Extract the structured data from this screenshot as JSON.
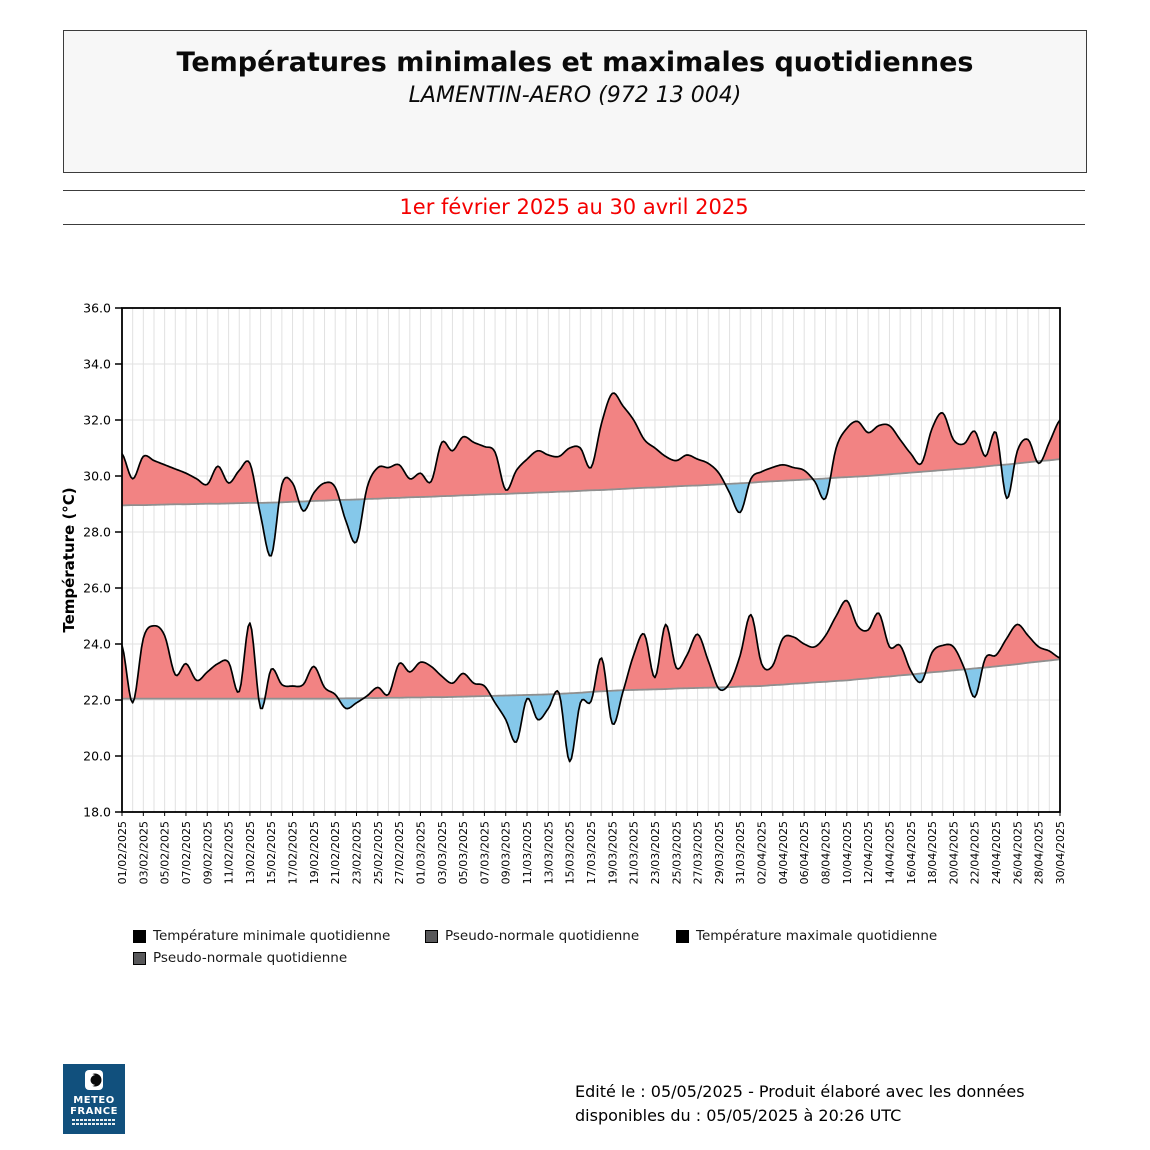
{
  "header": {
    "title": "Températures minimales et maximales quotidiennes",
    "station": "LAMENTIN-AERO (972 13 004)",
    "period": "1er février 2025 au 30 avril 2025"
  },
  "chart_data": {
    "type": "area",
    "title": "Températures minimales et maximales quotidiennes - LAMENTIN-AERO (972 13 004)",
    "xlabel": "",
    "ylabel": "Température (°C)",
    "ylim": [
      18.0,
      36.0
    ],
    "ytick_step": 2.0,
    "grid": true,
    "x_tick_rotation": 90,
    "n_days": 89,
    "x_labels": [
      "01/02/2025",
      "03/02/2025",
      "05/02/2025",
      "07/02/2025",
      "09/02/2025",
      "11/02/2025",
      "13/02/2025",
      "15/02/2025",
      "17/02/2025",
      "19/02/2025",
      "21/02/2025",
      "23/02/2025",
      "25/02/2025",
      "27/02/2025",
      "01/03/2025",
      "03/03/2025",
      "05/03/2025",
      "07/03/2025",
      "09/03/2025",
      "11/03/2025",
      "13/03/2025",
      "15/03/2025",
      "17/03/2025",
      "19/03/2025",
      "21/03/2025",
      "23/03/2025",
      "25/03/2025",
      "27/03/2025",
      "29/03/2025",
      "31/03/2025",
      "02/04/2025",
      "04/04/2025",
      "06/04/2025",
      "08/04/2025",
      "10/04/2025",
      "12/04/2025",
      "14/04/2025",
      "16/04/2025",
      "18/04/2025",
      "20/04/2025",
      "22/04/2025",
      "24/04/2025",
      "26/04/2025",
      "28/04/2025",
      "30/04/2025"
    ],
    "series": [
      {
        "name": "Température maximale quotidienne",
        "values": [
          30.8,
          29.9,
          30.7,
          30.55,
          30.4,
          30.25,
          30.1,
          29.9,
          29.7,
          30.35,
          29.75,
          30.2,
          30.45,
          28.6,
          27.15,
          29.7,
          29.75,
          28.75,
          29.4,
          29.75,
          29.6,
          28.4,
          27.65,
          29.6,
          30.3,
          30.3,
          30.4,
          29.9,
          30.1,
          29.8,
          31.2,
          30.9,
          31.4,
          31.2,
          31.05,
          30.85,
          29.5,
          30.2,
          30.6,
          30.9,
          30.75,
          30.7,
          31.0,
          31.0,
          30.3,
          31.9,
          32.95,
          32.5,
          32.0,
          31.3,
          31.0,
          30.7,
          30.55,
          30.75,
          30.6,
          30.45,
          30.1,
          29.4,
          28.7,
          29.9,
          30.15,
          30.3,
          30.4,
          30.3,
          30.2,
          29.8,
          29.2,
          31.0,
          31.7,
          31.95,
          31.55,
          31.8,
          31.8,
          31.3,
          30.8,
          30.45,
          31.7,
          32.25,
          31.3,
          31.15,
          31.6,
          30.7,
          31.55,
          29.2,
          30.9,
          31.3,
          30.45,
          31.2,
          32.0
        ]
      },
      {
        "name": "Pseudo-normale quotidienne (maximale)",
        "values": [
          28.95,
          28.96,
          28.96,
          28.97,
          28.98,
          28.99,
          28.99,
          29.0,
          29.01,
          29.01,
          29.02,
          29.03,
          29.04,
          29.04,
          29.05,
          29.06,
          29.08,
          29.09,
          29.11,
          29.12,
          29.14,
          29.15,
          29.16,
          29.18,
          29.19,
          29.21,
          29.22,
          29.24,
          29.25,
          29.26,
          29.28,
          29.29,
          29.31,
          29.32,
          29.34,
          29.35,
          29.36,
          29.38,
          29.39,
          29.41,
          29.42,
          29.44,
          29.45,
          29.47,
          29.49,
          29.5,
          29.52,
          29.54,
          29.56,
          29.58,
          29.59,
          29.61,
          29.63,
          29.65,
          29.66,
          29.68,
          29.7,
          29.72,
          29.74,
          29.76,
          29.79,
          29.81,
          29.83,
          29.85,
          29.87,
          29.89,
          29.91,
          29.94,
          29.96,
          29.98,
          30.0,
          30.03,
          30.06,
          30.09,
          30.12,
          30.15,
          30.18,
          30.21,
          30.24,
          30.27,
          30.3,
          30.34,
          30.38,
          30.41,
          30.45,
          30.49,
          30.53,
          30.56,
          30.6
        ]
      },
      {
        "name": "Température minimale quotidienne",
        "values": [
          23.95,
          21.9,
          24.2,
          24.65,
          24.3,
          22.9,
          23.3,
          22.7,
          23.0,
          23.3,
          23.35,
          22.3,
          24.75,
          21.7,
          23.1,
          22.55,
          22.5,
          22.55,
          23.2,
          22.45,
          22.2,
          21.7,
          21.9,
          22.15,
          22.45,
          22.2,
          23.3,
          23.0,
          23.35,
          23.2,
          22.85,
          22.6,
          22.95,
          22.6,
          22.5,
          21.9,
          21.3,
          20.5,
          22.05,
          21.3,
          21.7,
          22.25,
          19.8,
          21.9,
          21.95,
          23.5,
          21.15,
          22.3,
          23.6,
          24.35,
          22.8,
          24.7,
          23.15,
          23.6,
          24.35,
          23.4,
          22.4,
          22.6,
          23.6,
          25.05,
          23.3,
          23.2,
          24.2,
          24.25,
          24.0,
          23.9,
          24.3,
          25.0,
          25.55,
          24.65,
          24.5,
          25.1,
          23.9,
          23.95,
          23.05,
          22.65,
          23.7,
          23.95,
          23.9,
          23.15,
          22.1,
          23.5,
          23.6,
          24.2,
          24.7,
          24.3,
          23.9,
          23.75,
          23.5
        ]
      },
      {
        "name": "Pseudo-normale quotidienne (minimale)",
        "values": [
          22.05,
          22.05,
          22.05,
          22.05,
          22.05,
          22.05,
          22.05,
          22.05,
          22.05,
          22.05,
          22.05,
          22.05,
          22.05,
          22.05,
          22.05,
          22.05,
          22.05,
          22.05,
          22.05,
          22.05,
          22.05,
          22.06,
          22.06,
          22.07,
          22.07,
          22.08,
          22.08,
          22.09,
          22.09,
          22.1,
          22.1,
          22.11,
          22.12,
          22.13,
          22.14,
          22.15,
          22.16,
          22.17,
          22.18,
          22.19,
          22.2,
          22.22,
          22.24,
          22.26,
          22.29,
          22.31,
          22.33,
          22.35,
          22.36,
          22.37,
          22.38,
          22.39,
          22.41,
          22.42,
          22.43,
          22.44,
          22.45,
          22.46,
          22.48,
          22.49,
          22.5,
          22.53,
          22.55,
          22.58,
          22.6,
          22.63,
          22.65,
          22.68,
          22.7,
          22.74,
          22.77,
          22.81,
          22.84,
          22.88,
          22.91,
          22.95,
          22.99,
          23.02,
          23.06,
          23.09,
          23.13,
          23.16,
          23.2,
          23.24,
          23.28,
          23.33,
          23.37,
          23.41,
          23.45
        ]
      }
    ],
    "colors": {
      "above_normal_fill": "#f28383",
      "below_normal_fill": "#85c8ea",
      "curve_line": "#000000",
      "normal_line": "#8f8f8f",
      "grid": "#e1e1e1",
      "frame": "#000000"
    }
  },
  "legend": {
    "items": [
      {
        "label": "Température minimale quotidienne",
        "color": "#000000"
      },
      {
        "label": "Pseudo-normale quotidienne",
        "color": "#58585a"
      },
      {
        "label": "Température maximale quotidienne",
        "color": "#000000"
      },
      {
        "label": "Pseudo-normale quotidienne",
        "color": "#58585a"
      }
    ]
  },
  "footer": {
    "line1": "Edité le : 05/05/2025 - Produit élaboré avec les données",
    "line2": "disponibles du : 05/05/2025 à 20:26 UTC",
    "logo": {
      "line1": "METEO",
      "line2": "FRANCE"
    }
  }
}
